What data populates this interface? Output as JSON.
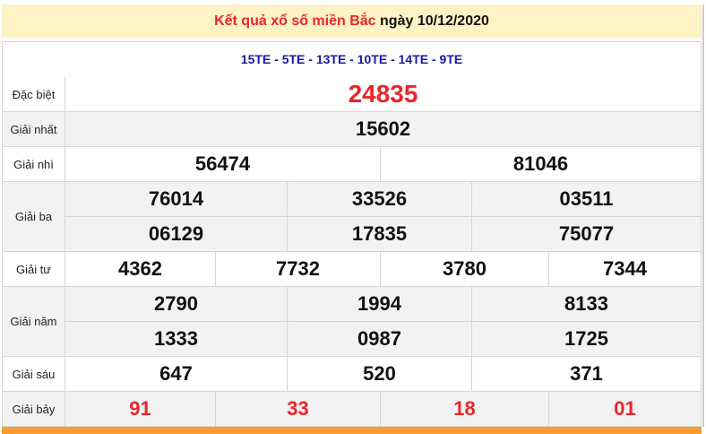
{
  "header": {
    "title_red": "Kết quả xổ số miền Bắc",
    "title_date": "ngày 10/12/2020"
  },
  "codes": "15TE - 5TE - 13TE - 10TE - 14TE - 9TE",
  "colors": {
    "accent_red": "#e8262b",
    "codes_blue": "#1a1aa0",
    "header_bg": "#fdf3c4",
    "footer_orange": "#f99b31"
  },
  "prizes": [
    {
      "label": "Đặc biệt",
      "numbers": [
        "24835"
      ]
    },
    {
      "label": "Giải nhất",
      "numbers": [
        "15602"
      ]
    },
    {
      "label": "Giải nhì",
      "numbers": [
        "56474",
        "81046"
      ]
    },
    {
      "label": "Giải ba",
      "numbers": [
        "76014",
        "33526",
        "03511",
        "06129",
        "17835",
        "75077"
      ]
    },
    {
      "label": "Giải tư",
      "numbers": [
        "4362",
        "7732",
        "3780",
        "7344"
      ]
    },
    {
      "label": "Giải năm",
      "numbers": [
        "2790",
        "1994",
        "8133",
        "1333",
        "0987",
        "1725"
      ]
    },
    {
      "label": "Giải sáu",
      "numbers": [
        "647",
        "520",
        "371"
      ]
    },
    {
      "label": "Giải bảy",
      "numbers": [
        "91",
        "33",
        "18",
        "01"
      ]
    }
  ]
}
